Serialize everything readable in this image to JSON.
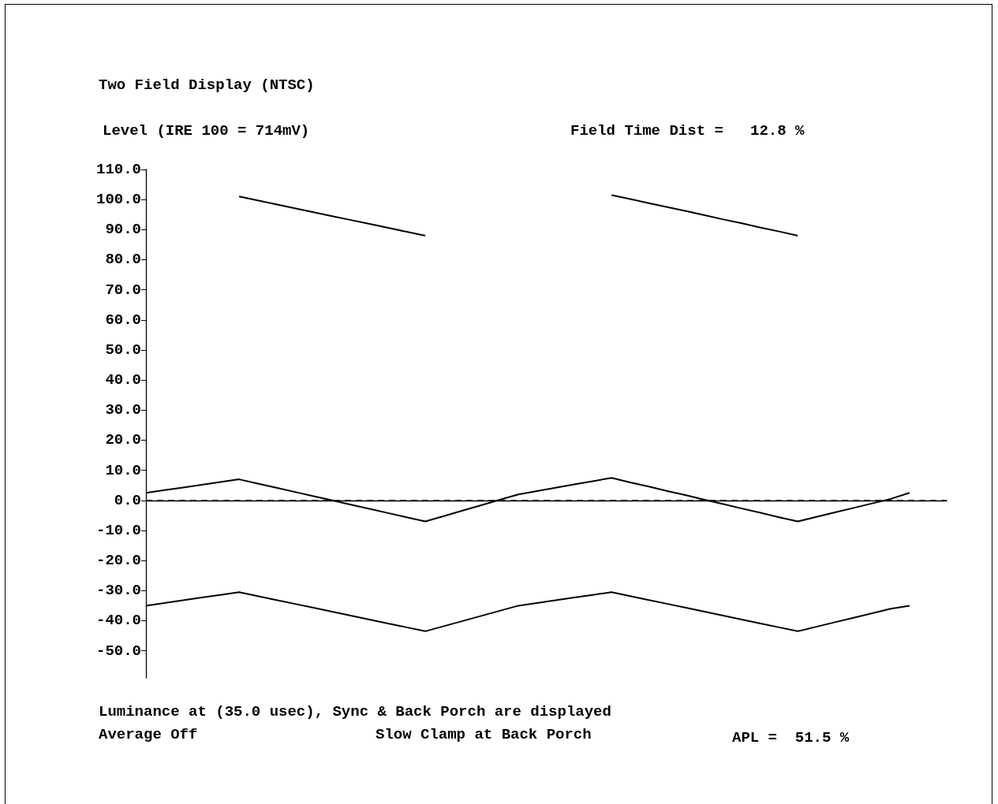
{
  "chart_data": {
    "type": "line",
    "title": "Two Field Display (NTSC)",
    "ylabel": "Level (IRE 100 = 714mV)",
    "annotations": [
      "Field Time Dist =   12.8 %",
      "Luminance at (35.0 usec), Sync & Back Porch are displayed",
      "Average Off",
      "Slow Clamp at Back Porch",
      "APL =  51.5 %"
    ],
    "categories": [
      null,
      null,
      null,
      null,
      null,
      null,
      null,
      null,
      null,
      null,
      null,
      null,
      null,
      null,
      null,
      null,
      null,
      null,
      null,
      null,
      null,
      null,
      null,
      null,
      null,
      null,
      null,
      null,
      null,
      null,
      null,
      null,
      null,
      null,
      null,
      null,
      null,
      null,
      null,
      null,
      null,
      null,
      null,
      null
    ],
    "series": [
      {
        "color": "#000000",
        "values": [
          null,
          null,
          null,
          null,
          null,
          101,
          99.7,
          98.4,
          97.1,
          95.8,
          94.5,
          93.2,
          91.9,
          90.6,
          89.3,
          88,
          null,
          null,
          null,
          null,
          null,
          null,
          null,
          null,
          null,
          101.5,
          100.2,
          98.8,
          97.5,
          96.2,
          94.8,
          93.4,
          92.1,
          90.7,
          89.4,
          88,
          null,
          null,
          null,
          null,
          null,
          null,
          null,
          null
        ]
      },
      {
        "color": "#000000",
        "values": [
          2.5,
          3.4,
          4.3,
          5.2,
          6.1,
          7,
          5.6,
          4.2,
          2.8,
          1.4,
          0,
          -1.4,
          -2.8,
          -4.2,
          -5.6,
          -7,
          -5.2,
          -3.4,
          -1.6,
          0.2,
          2,
          3.1,
          4.2,
          5.3,
          6.4,
          7.5,
          6,
          4.6,
          3.1,
          1.7,
          0.2,
          -1.2,
          -2.7,
          -4.1,
          -5.6,
          -7,
          -5.5,
          -4,
          -2.5,
          -1,
          0.5,
          2.5,
          null,
          null
        ]
      },
      {
        "color": "#000000",
        "values": [
          -35,
          -34.1,
          -33.2,
          -32.3,
          -31.4,
          -30.5,
          -31.8,
          -33.1,
          -34.4,
          -35.7,
          -37,
          -38.3,
          -39.6,
          -40.9,
          -42.2,
          -43.5,
          -41.8,
          -40.1,
          -38.4,
          -36.7,
          -35,
          -34.1,
          -33.2,
          -32.3,
          -31.4,
          -30.5,
          -31.8,
          -33.1,
          -34.4,
          -35.7,
          -37,
          -38.3,
          -39.6,
          -40.9,
          -42.2,
          -43.5,
          -42,
          -40.5,
          -39,
          -37.5,
          -36,
          -35,
          null,
          null
        ]
      }
    ],
    "ylim": [
      -59,
      110
    ],
    "yticks": [
      {
        "value": -50,
        "label": "-50.0"
      },
      {
        "value": -40,
        "label": "-40.0"
      },
      {
        "value": -30,
        "label": "-30.0"
      },
      {
        "value": -20,
        "label": "-20.0"
      },
      {
        "value": -10,
        "label": "-10.0"
      },
      {
        "value": 0,
        "label": "0.0"
      },
      {
        "value": 10,
        "label": "10.0"
      },
      {
        "value": 20,
        "label": "20.0"
      },
      {
        "value": 30,
        "label": "30.0"
      },
      {
        "value": 40,
        "label": "40.0"
      },
      {
        "value": 50,
        "label": "50.0"
      },
      {
        "value": 60,
        "label": "60.0"
      },
      {
        "value": 70,
        "label": "70.0"
      },
      {
        "value": 80,
        "label": "80.0"
      },
      {
        "value": 90,
        "label": "90.0"
      },
      {
        "value": 100,
        "label": "100.0"
      },
      {
        "value": 110,
        "label": "110.0"
      }
    ],
    "ref_lines": [
      {
        "axis": "y",
        "value": 0,
        "line_style": "dashed",
        "color": "#000000"
      }
    ],
    "tick_labels": "y",
    "grid": false,
    "marker": "none",
    "line_style": "solid"
  }
}
